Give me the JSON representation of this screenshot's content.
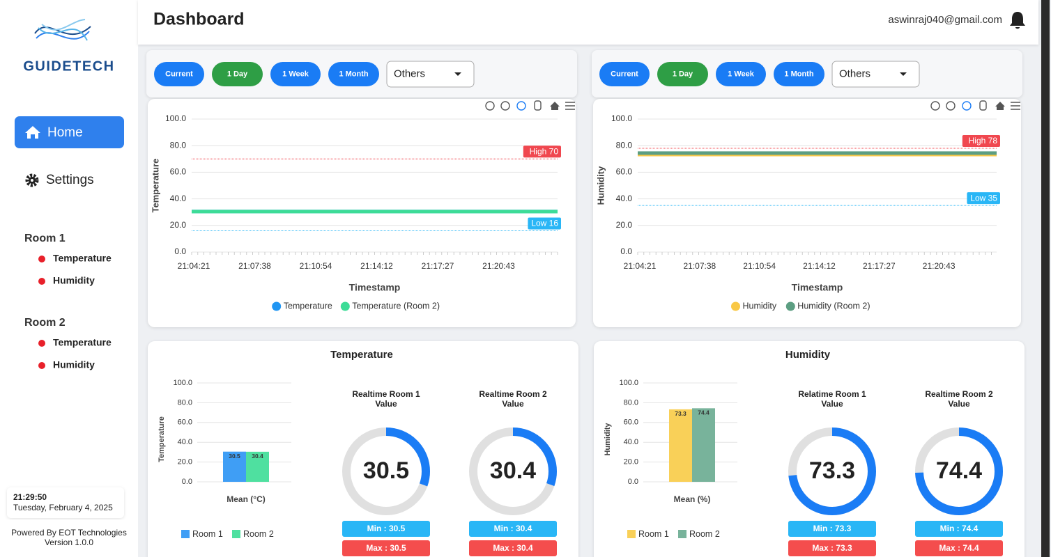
{
  "sidebar": {
    "logo": "GUIDETECH",
    "nav": [
      "Home",
      "Settings"
    ],
    "rooms": [
      {
        "name": "Room 1",
        "items": [
          "Temperature",
          "Humidity"
        ]
      },
      {
        "name": "Room 2",
        "items": [
          "Temperature",
          "Humidity"
        ]
      }
    ],
    "time": "21:29:50",
    "date": "Tuesday, February 4, 2025",
    "footer": [
      "Powered By EOT Technologies",
      "Version 1.0.0"
    ]
  },
  "header": {
    "title": "Dashboard",
    "user": "aswinraj040@gmail.com"
  },
  "panels": [
    {
      "buttons": [
        {
          "label": "Current",
          "color": "#1a7cf5"
        },
        {
          "label": "1 Day",
          "color": "#2e9e45"
        },
        {
          "label": "1 Week",
          "color": "#1a7cf5"
        },
        {
          "label": "1 Month",
          "color": "#1a7cf5"
        }
      ],
      "select": "Others",
      "chart": {
        "type": "line",
        "y_label": "Temperature",
        "x_label": "Timestamp",
        "categories": [
          "21:04:21",
          "21:07:38",
          "21:10:54",
          "21:14:12",
          "21:17:27",
          "21:20:43",
          null
        ],
        "ylim": [
          0,
          100
        ],
        "yticks": [
          {
            "value": 0,
            "label": "0.0"
          },
          {
            "value": 20,
            "label": "20.0"
          },
          {
            "value": 40,
            "label": "40.0"
          },
          {
            "value": 60,
            "label": "60.0"
          },
          {
            "value": 80,
            "label": "80.0"
          },
          {
            "value": 100,
            "label": "100.0"
          }
        ],
        "series": [
          {
            "name": "Temperature",
            "color": "#2196f3",
            "values": [
              30.5,
              30.5,
              30.5,
              30.5,
              30.5,
              30.5,
              30.5
            ]
          },
          {
            "name": "Temperature (Room 2)",
            "color": "#3ddc97",
            "values": [
              30.4,
              30.4,
              30.4,
              30.4,
              30.4,
              30.4,
              30.4
            ]
          }
        ],
        "thresholds": [
          {
            "label": "High 70",
            "value": 70,
            "color": "#f0474f"
          },
          {
            "label": "Low 16",
            "value": 16,
            "color": "#29b6f6"
          }
        ]
      }
    },
    {
      "buttons": [
        {
          "label": "Current",
          "color": "#1a7cf5"
        },
        {
          "label": "1 Day",
          "color": "#2e9e45"
        },
        {
          "label": "1 Week",
          "color": "#1a7cf5"
        },
        {
          "label": "1 Month",
          "color": "#1a7cf5"
        }
      ],
      "select": "Others",
      "chart": {
        "type": "line",
        "y_label": "Humidity",
        "x_label": "Timestamp",
        "categories": [
          "21:04:21",
          "21:07:38",
          "21:10:54",
          "21:14:12",
          "21:17:27",
          "21:20:43",
          null
        ],
        "ylim": [
          0,
          100
        ],
        "yticks": [
          {
            "value": 0,
            "label": "0.0"
          },
          {
            "value": 20,
            "label": "20.0"
          },
          {
            "value": 40,
            "label": "40.0"
          },
          {
            "value": 60,
            "label": "60.0"
          },
          {
            "value": 80,
            "label": "80.0"
          },
          {
            "value": 100,
            "label": "100.0"
          }
        ],
        "series": [
          {
            "name": "Humidity",
            "color": "#f9c846",
            "values": [
              73.3,
              73.3,
              73.3,
              73.3,
              73.3,
              73.3,
              73.3
            ]
          },
          {
            "name": "Humidity (Room 2)",
            "color": "#5c9e82",
            "values": [
              74.4,
              74.4,
              74.4,
              74.4,
              74.4,
              74.4,
              74.4
            ]
          }
        ],
        "thresholds": [
          {
            "label": "High 78",
            "value": 78,
            "color": "#f0474f"
          },
          {
            "label": "Low 35",
            "value": 35,
            "color": "#29b6f6"
          }
        ]
      }
    }
  ],
  "summaries": [
    {
      "title": "Temperature",
      "chart": {
        "type": "bar",
        "y_label": "Temperature",
        "categories": [
          "Mean (°C)"
        ],
        "ylim": [
          0,
          100
        ],
        "yticks": [
          {
            "value": 0,
            "label": "0.0"
          },
          {
            "value": 20,
            "label": "20.0"
          },
          {
            "value": 40,
            "label": "40.0"
          },
          {
            "value": 60,
            "label": "60.0"
          },
          {
            "value": 80,
            "label": "80.0"
          },
          {
            "value": 100,
            "label": "100.0"
          }
        ],
        "series": [
          {
            "name": "Room 1",
            "color": "#3f9ef5",
            "values": [
              30.5
            ]
          },
          {
            "name": "Room 2",
            "color": "#4fe0a0",
            "values": [
              30.4
            ]
          }
        ]
      },
      "gauge_color": "#1a7cf5",
      "gauges": [
        {
          "title": "Realtime Room 1 Value",
          "value": 30.5,
          "min_label": "Min : 30.5",
          "max_label": "Max : 30.5"
        },
        {
          "title": "Realtime Room 2 Value",
          "value": 30.4,
          "min_label": "Min : 30.4",
          "max_label": "Max : 30.4"
        }
      ]
    },
    {
      "title": "Humidity",
      "chart": {
        "type": "bar",
        "y_label": "Humidity",
        "categories": [
          "Mean (%)"
        ],
        "ylim": [
          0,
          100
        ],
        "yticks": [
          {
            "value": 0,
            "label": "0.0"
          },
          {
            "value": 20,
            "label": "20.0"
          },
          {
            "value": 40,
            "label": "40.0"
          },
          {
            "value": 60,
            "label": "60.0"
          },
          {
            "value": 80,
            "label": "80.0"
          },
          {
            "value": 100,
            "label": "100.0"
          }
        ],
        "series": [
          {
            "name": "Room 1",
            "color": "#f9d058",
            "values": [
              73.3
            ]
          },
          {
            "name": "Room 2",
            "color": "#78b39b",
            "values": [
              74.4
            ]
          }
        ]
      },
      "gauge_color": "#1a7cf5",
      "gauges": [
        {
          "title": "Relatime Room 1 Value",
          "value": 73.3,
          "min_label": "Min : 73.3",
          "max_label": "Max : 73.3"
        },
        {
          "title": "Realtime Room 2 Value",
          "value": 74.4,
          "min_label": "Min : 74.4",
          "max_label": "Max : 74.4"
        }
      ]
    }
  ]
}
